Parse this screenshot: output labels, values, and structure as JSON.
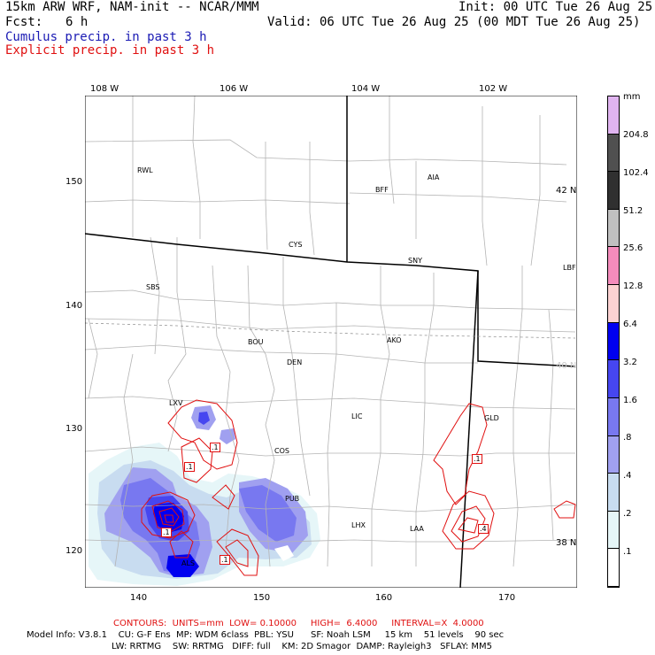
{
  "header": {
    "model": "15km ARW WRF, NAM-init -- NCAR/MMM",
    "fcst_label": "Fcst:",
    "fcst_value": "6 h",
    "init": "Init: 00 UTC Tue 26 Aug 25",
    "valid": "Valid: 06 UTC Tue 26 Aug 25 (00 MDT Tue 26 Aug 25)",
    "cumulus": "Cumulus precip. in past 3 h",
    "explicit": "Explicit precip. in past 3 h"
  },
  "colors": {
    "cumulus_text": "#1a1ab4",
    "explicit_text": "#e01010",
    "contour": "#e01010",
    "state_border": "#000000",
    "county_line": "#b4b4b4"
  },
  "map": {
    "lon_labels": [
      "108 W",
      "106 W",
      "104 W",
      "102 W"
    ],
    "lat_labels": [
      "42 N",
      "40 N",
      "38 N"
    ],
    "x_ticks": [
      "140",
      "150",
      "160",
      "170"
    ],
    "y_ticks": [
      "150",
      "140",
      "130",
      "120"
    ],
    "stations": [
      "RWL",
      "BFF",
      "AIA",
      "CYS",
      "SNY",
      "LBF",
      "SBS",
      "AKO",
      "BOU",
      "DEN",
      "LXV",
      "LIC",
      "GLD",
      "COS",
      "PUB",
      "LHX",
      "LAA",
      "ALS"
    ],
    "contour_labels": [
      ".1",
      ".1",
      ".1",
      ".1",
      ".4",
      ".1"
    ]
  },
  "colorbar": {
    "unit": "mm",
    "levels": [
      "204.8",
      "102.4",
      "51.2",
      "25.6",
      "12.8",
      "6.4",
      "3.2",
      "1.6",
      ".8",
      ".4",
      ".2",
      ".1"
    ],
    "colors": [
      "#e0b4f0",
      "#505050",
      "#303030",
      "#c0c0c0",
      "#f48cbc",
      "#fcd2d2",
      "#0000f0",
      "#4646f0",
      "#7878f0",
      "#a0a0f0",
      "#c8dcf0",
      "#e6f6f8",
      "#ffffff"
    ]
  },
  "footer": {
    "contours": "CONTOURS:  UNITS=mm  LOW= 0.10000     HIGH=  6.4000     INTERVAL=X  4.0000",
    "model_info_1": "Model Info: V3.8.1    CU: G-F Ens  MP: WDM 6class  PBL: YSU      SF: Noah LSM     15 km    51 levels    90 sec",
    "model_info_2": "LW: RRTMG    SW: RRTMG   DIFF: full    KM: 2D Smagor  DAMP: Rayleigh3   SFLAY: MM5"
  }
}
